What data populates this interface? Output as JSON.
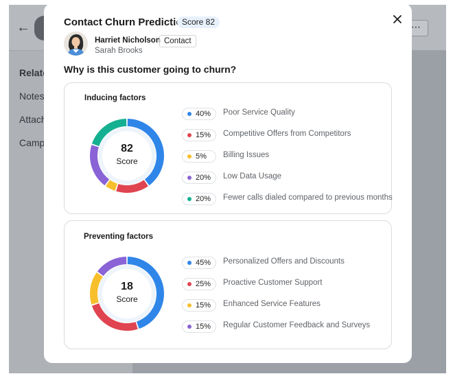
{
  "background": {
    "sidebar_links": [
      "Relate",
      "Notes",
      "Attach",
      "Camp"
    ]
  },
  "modal": {
    "title": "Contact Churn Prediction",
    "score_badge": "Score 82",
    "contact": {
      "name": "Harriet Nicholson",
      "tag": "Contact",
      "owner": "Sarah Brooks"
    },
    "question": "Why is this customer going to churn?"
  },
  "inducing": {
    "title": "Inducing factors",
    "score": "82",
    "score_label": "Score",
    "factors": [
      {
        "percent": "40%",
        "value": 40,
        "label": "Poor Service Quality",
        "color": "#2f86e8"
      },
      {
        "percent": "15%",
        "value": 15,
        "label": "Competitive Offers from Competitors",
        "color": "#e04450"
      },
      {
        "percent": "5%",
        "value": 5,
        "label": "Billing Issues",
        "color": "#f7bf2c"
      },
      {
        "percent": "20%",
        "value": 20,
        "label": "Low Data Usage",
        "color": "#8a63d6"
      },
      {
        "percent": "20%",
        "value": 20,
        "label": "Fewer calls dialed compared to previous months",
        "color": "#15b092"
      }
    ]
  },
  "preventing": {
    "title": "Preventing factors",
    "score": "18",
    "score_label": "Score",
    "factors": [
      {
        "percent": "45%",
        "value": 45,
        "label": "Personalized Offers and Discounts",
        "color": "#2f86e8"
      },
      {
        "percent": "25%",
        "value": 25,
        "label": "Proactive Customer Support",
        "color": "#e04450"
      },
      {
        "percent": "15%",
        "value": 15,
        "label": "Enhanced Service Features",
        "color": "#f7bf2c"
      },
      {
        "percent": "15%",
        "value": 15,
        "label": "Regular Customer Feedback and Surveys",
        "color": "#8a63d6"
      }
    ]
  }
}
